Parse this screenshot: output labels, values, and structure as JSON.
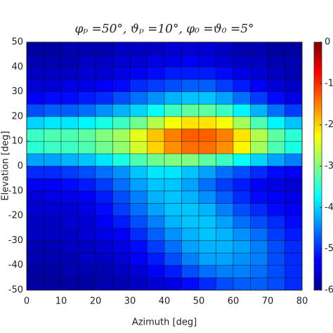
{
  "chart_data": {
    "type": "heatmap",
    "title": "φₚ =50°, ϑₚ =10°, φ₀ =ϑ₀ =5°",
    "x_label": "Azimuth [deg]",
    "y_label": "Elevation [deg]",
    "colormap": "jet",
    "xbins": [
      0,
      5,
      10,
      15,
      20,
      25,
      30,
      35,
      40,
      45,
      50,
      55,
      60,
      65,
      70,
      75,
      80
    ],
    "ybins": [
      -50,
      -45,
      -40,
      -35,
      -30,
      -25,
      -20,
      -15,
      -10,
      -5,
      0,
      5,
      10,
      15,
      20,
      25,
      30,
      35,
      40,
      45,
      50
    ],
    "z": [
      [
        -5.8,
        -5.8,
        -5.8,
        -5.8,
        -5.7,
        -5.7,
        -5.6,
        -5.5,
        -5.4,
        -5.2,
        -5.0,
        -4.8,
        -4.7,
        -4.7,
        -4.8,
        -5.0
      ],
      [
        -5.8,
        -5.8,
        -5.7,
        -5.7,
        -5.7,
        -5.6,
        -5.5,
        -5.3,
        -5.1,
        -4.8,
        -4.6,
        -4.5,
        -4.5,
        -4.6,
        -4.8,
        -5.0
      ],
      [
        -5.7,
        -5.7,
        -5.7,
        -5.6,
        -5.6,
        -5.5,
        -5.3,
        -5.1,
        -4.8,
        -4.5,
        -4.3,
        -4.3,
        -4.4,
        -4.5,
        -4.8,
        -5.0
      ],
      [
        -5.7,
        -5.7,
        -5.6,
        -5.6,
        -5.5,
        -5.4,
        -5.2,
        -4.9,
        -4.6,
        -4.3,
        -4.2,
        -4.2,
        -4.3,
        -4.5,
        -4.8,
        -5.0
      ],
      [
        -5.6,
        -5.6,
        -5.6,
        -5.5,
        -5.4,
        -5.3,
        -5.0,
        -4.7,
        -4.4,
        -4.2,
        -4.1,
        -4.2,
        -4.4,
        -4.6,
        -4.9,
        -5.1
      ],
      [
        -5.6,
        -5.6,
        -5.5,
        -5.5,
        -5.3,
        -5.1,
        -4.8,
        -4.5,
        -4.2,
        -4.1,
        -4.1,
        -4.3,
        -4.6,
        -4.8,
        -5.0,
        -5.2
      ],
      [
        -5.5,
        -5.5,
        -5.5,
        -5.4,
        -5.2,
        -4.9,
        -4.6,
        -4.3,
        -4.1,
        -4.1,
        -4.2,
        -4.5,
        -4.8,
        -5.0,
        -5.2,
        -5.3
      ],
      [
        -5.5,
        -5.4,
        -5.4,
        -5.3,
        -5.1,
        -4.8,
        -4.5,
        -4.2,
        -4.1,
        -4.2,
        -4.4,
        -4.7,
        -5.0,
        -5.2,
        -5.3,
        -5.4
      ],
      [
        -5.3,
        -5.3,
        -5.2,
        -5.1,
        -4.9,
        -4.6,
        -4.3,
        -4.1,
        -4.1,
        -4.3,
        -4.6,
        -4.9,
        -5.1,
        -5.3,
        -5.4,
        -5.5
      ],
      [
        -5.0,
        -5.0,
        -4.9,
        -4.8,
        -4.6,
        -4.4,
        -4.1,
        -3.9,
        -3.9,
        -4.1,
        -4.3,
        -4.6,
        -4.8,
        -5.0,
        -5.2,
        -5.3
      ],
      [
        -4.3,
        -4.3,
        -4.2,
        -4.1,
        -3.9,
        -3.6,
        -3.3,
        -3.1,
        -3.0,
        -3.0,
        -3.2,
        -3.4,
        -3.7,
        -4.0,
        -4.3,
        -4.5
      ],
      [
        -3.5,
        -3.4,
        -3.4,
        -3.3,
        -3.1,
        -2.9,
        -2.5,
        -2.0,
        -1.6,
        -1.4,
        -1.4,
        -1.6,
        -2.2,
        -2.8,
        -3.3,
        -3.6
      ],
      [
        -3.4,
        -3.3,
        -3.3,
        -3.2,
        -3.0,
        -2.8,
        -2.4,
        -1.9,
        -1.5,
        -1.3,
        -1.3,
        -1.5,
        -2.1,
        -2.7,
        -3.2,
        -3.5
      ],
      [
        -4.0,
        -3.9,
        -3.9,
        -3.8,
        -3.6,
        -3.4,
        -3.1,
        -2.7,
        -2.3,
        -2.1,
        -2.1,
        -2.3,
        -2.8,
        -3.3,
        -3.8,
        -4.1
      ],
      [
        -4.8,
        -4.7,
        -4.7,
        -4.6,
        -4.4,
        -4.2,
        -4.0,
        -3.7,
        -3.4,
        -3.2,
        -3.2,
        -3.4,
        -3.8,
        -4.2,
        -4.6,
        -4.9
      ],
      [
        -5.3,
        -5.2,
        -5.2,
        -5.1,
        -5.0,
        -4.8,
        -4.6,
        -4.4,
        -4.2,
        -4.1,
        -4.1,
        -4.3,
        -4.6,
        -4.9,
        -5.2,
        -5.4
      ],
      [
        -5.5,
        -5.5,
        -5.4,
        -5.4,
        -5.3,
        -5.2,
        -5.0,
        -4.9,
        -4.8,
        -4.7,
        -4.7,
        -4.9,
        -5.1,
        -5.3,
        -5.5,
        -5.6
      ],
      [
        -5.6,
        -5.6,
        -5.6,
        -5.5,
        -5.5,
        -5.4,
        -5.3,
        -5.2,
        -5.1,
        -5.1,
        -5.1,
        -5.2,
        -5.4,
        -5.5,
        -5.6,
        -5.7
      ],
      [
        -5.7,
        -5.7,
        -5.7,
        -5.6,
        -5.6,
        -5.5,
        -5.5,
        -5.4,
        -5.4,
        -5.3,
        -5.4,
        -5.5,
        -5.6,
        -5.6,
        -5.7,
        -5.7
      ],
      [
        -5.8,
        -5.8,
        -5.7,
        -5.7,
        -5.7,
        -5.6,
        -5.6,
        -5.6,
        -5.5,
        -5.5,
        -5.5,
        -5.6,
        -5.7,
        -5.7,
        -5.8,
        -5.8
      ]
    ],
    "xlim": [
      0,
      80
    ],
    "xticks": [
      0,
      10,
      20,
      30,
      40,
      50,
      60,
      70,
      80
    ],
    "ylim": [
      -50,
      50
    ],
    "yticks": [
      -50,
      -40,
      -30,
      -20,
      -10,
      0,
      10,
      20,
      30,
      40,
      50
    ],
    "zlim": [
      -6,
      0
    ],
    "zticks": [
      0,
      -1,
      -2,
      -3,
      -4,
      -5,
      -6
    ]
  }
}
